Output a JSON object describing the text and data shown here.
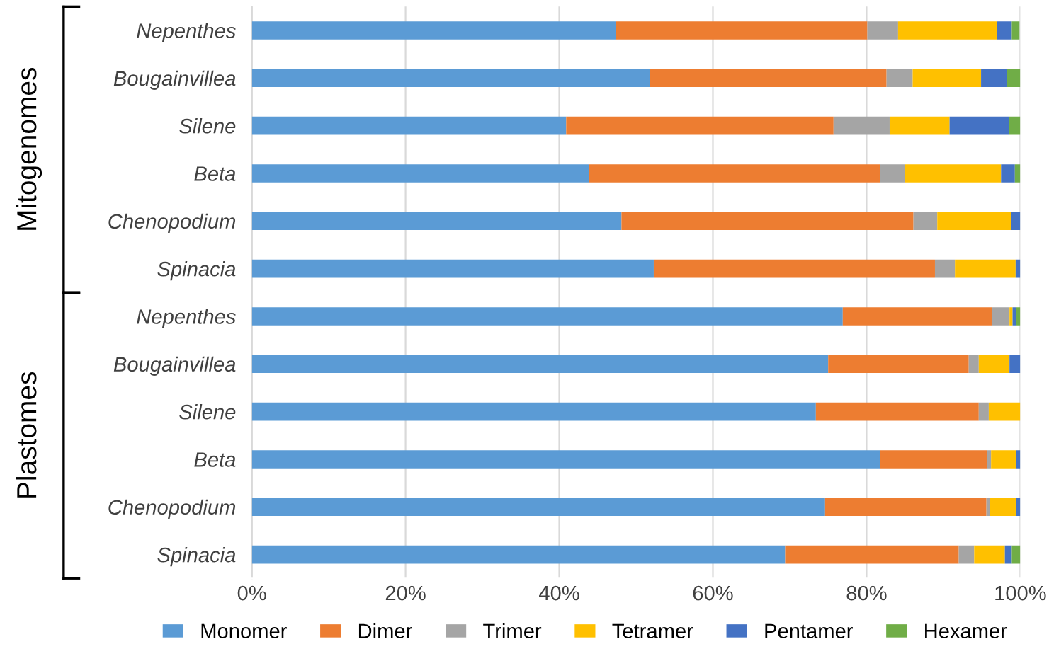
{
  "chart_data": {
    "type": "bar",
    "orientation": "horizontal",
    "stacked": true,
    "categories": [
      "Nepenthes",
      "Bougainvillea",
      "Silene",
      "Beta",
      "Chenopodium",
      "Spinacia",
      "Nepenthes",
      "Bougainvillea",
      "Silene",
      "Beta",
      "Chenopodium",
      "Spinacia"
    ],
    "series": [
      {
        "name": "Monomer",
        "color": "#5b9bd5",
        "values": [
          47.4,
          51.8,
          40.9,
          43.9,
          48.1,
          52.3,
          76.9,
          75.0,
          73.4,
          81.8,
          74.6,
          69.4
        ]
      },
      {
        "name": "Dimer",
        "color": "#ed7d31",
        "values": [
          32.7,
          30.8,
          34.8,
          37.9,
          38.0,
          36.6,
          19.4,
          18.3,
          21.2,
          13.9,
          21.0,
          22.6
        ]
      },
      {
        "name": "Trimer",
        "color": "#a5a5a5",
        "values": [
          4.0,
          3.4,
          7.3,
          3.2,
          3.1,
          2.6,
          2.3,
          1.3,
          1.3,
          0.5,
          0.4,
          2.0
        ]
      },
      {
        "name": "Tetramer",
        "color": "#ffc000",
        "values": [
          12.9,
          8.9,
          7.8,
          12.5,
          9.6,
          7.9,
          0.4,
          4.0,
          4.1,
          3.3,
          3.5,
          4.0
        ]
      },
      {
        "name": "Pentamer",
        "color": "#4472c4",
        "values": [
          1.9,
          3.4,
          7.7,
          1.8,
          1.2,
          0.6,
          0.5,
          1.4,
          0,
          0.5,
          0.5,
          0.9
        ]
      },
      {
        "name": "Hexamer",
        "color": "#70ad47",
        "values": [
          1.0,
          1.7,
          1.5,
          0.7,
          0,
          0,
          0.5,
          0,
          0,
          0,
          0,
          1.1
        ]
      }
    ],
    "xlim": [
      0,
      100
    ],
    "xticks": [
      {
        "value": 0,
        "label": "0%"
      },
      {
        "value": 20,
        "label": "20%"
      },
      {
        "value": 40,
        "label": "40%"
      },
      {
        "value": 60,
        "label": "60%"
      },
      {
        "value": 80,
        "label": "80%"
      },
      {
        "value": 100,
        "label": "100%"
      }
    ],
    "grid": "x",
    "legend": "bottom",
    "annotations": [
      "Mitogenomes",
      "Plastomes"
    ]
  }
}
